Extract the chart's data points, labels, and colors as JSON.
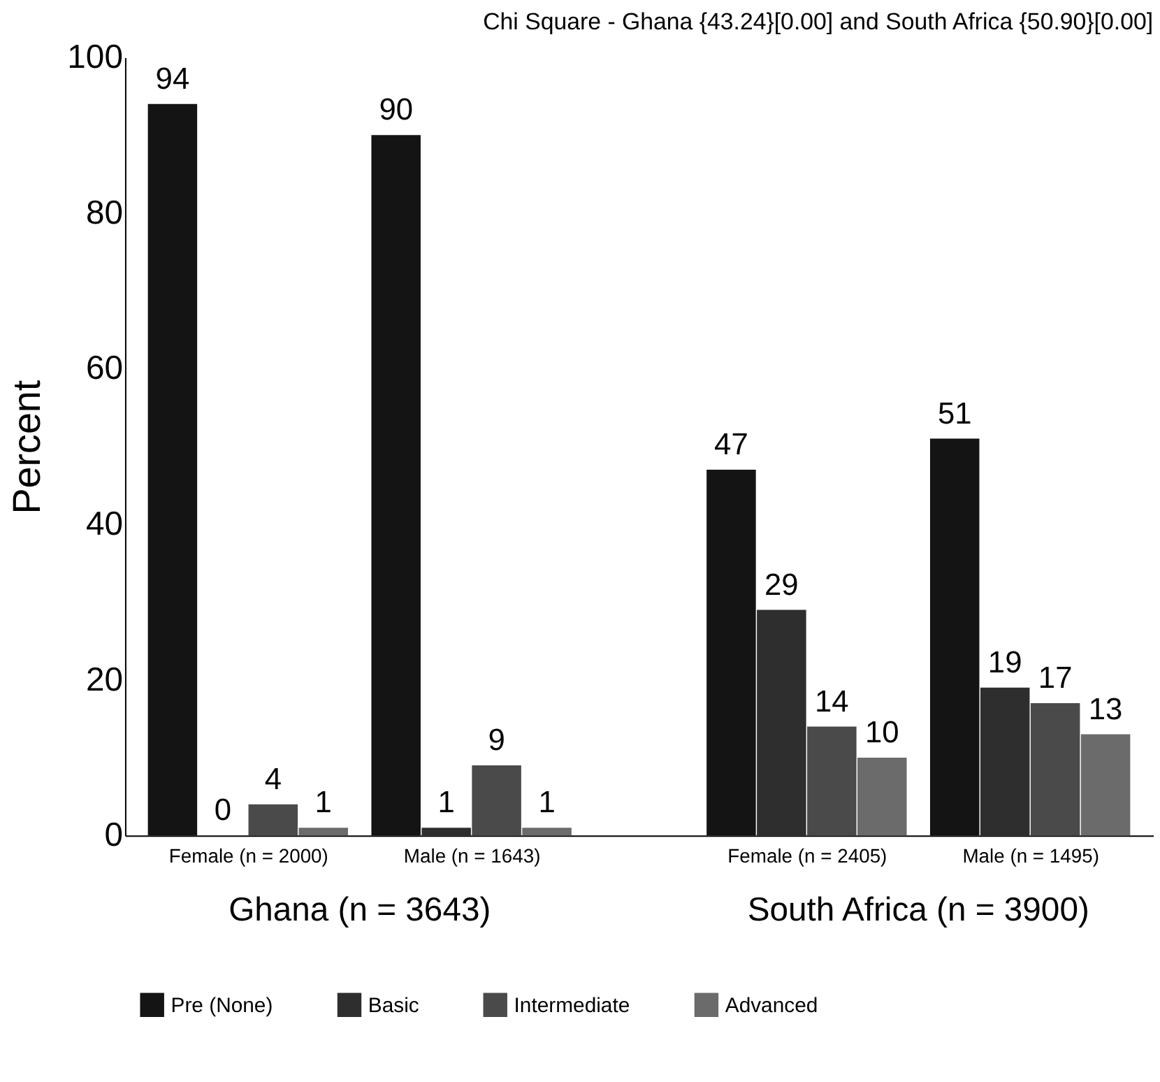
{
  "chart_data": {
    "type": "bar",
    "title": "Chi Square -  Ghana {43.24}[0.00] and South Africa {50.90}[0.00]",
    "ylabel": "Percent",
    "categories": [
      "Female (n = 2000)",
      "Male (n = 1643)",
      "Female (n = 2405)",
      "Male (n = 1495)"
    ],
    "series": [
      {
        "name": "Pre (None)",
        "color": "#141414",
        "values": [
          94,
          90,
          47,
          51
        ]
      },
      {
        "name": "Basic",
        "color": "#2e2e2e",
        "values": [
          0,
          1,
          29,
          19
        ]
      },
      {
        "name": "Intermediate",
        "color": "#4a4a4a",
        "values": [
          4,
          9,
          14,
          17
        ]
      },
      {
        "name": "Advanced",
        "color": "#6b6b6b",
        "values": [
          1,
          1,
          10,
          13
        ]
      }
    ],
    "annotations": [
      "Ghana (n = 3643)",
      "South Africa (n = 3900)"
    ],
    "ylim": [
      0,
      100
    ],
    "yticks": [
      0,
      20,
      40,
      60,
      80,
      100
    ],
    "grid": false,
    "legend": "bottom",
    "data_labels": true
  }
}
